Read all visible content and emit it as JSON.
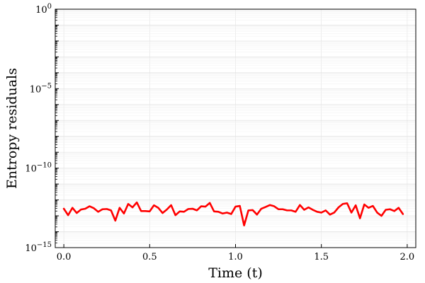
{
  "chart_data": {
    "type": "line",
    "xlabel": "Time (t)",
    "ylabel": "Entropy residuals",
    "xlim": [
      -0.05,
      2.05
    ],
    "ylim": [
      1e-15,
      1
    ],
    "yscale": "log",
    "grid": true,
    "legend": "none",
    "x_ticks": [
      {
        "value": 0.0,
        "label": "0.0"
      },
      {
        "value": 0.5,
        "label": "0.5"
      },
      {
        "value": 1.0,
        "label": "1.0"
      },
      {
        "value": 1.5,
        "label": "1.5"
      },
      {
        "value": 2.0,
        "label": "2.0"
      }
    ],
    "y_ticks": [
      {
        "exp": -15,
        "base": "10",
        "sup": "−15"
      },
      {
        "exp": -10,
        "base": "10",
        "sup": "−10"
      },
      {
        "exp": -5,
        "base": "10",
        "sup": "−5"
      },
      {
        "exp": 0,
        "base": "10",
        "sup": "0"
      }
    ],
    "series": [
      {
        "color": "#ff0000",
        "x": [
          0.0,
          0.025,
          0.05,
          0.075,
          0.1,
          0.125,
          0.15,
          0.175,
          0.2,
          0.225,
          0.25,
          0.275,
          0.3,
          0.325,
          0.35,
          0.375,
          0.4,
          0.425,
          0.45,
          0.475,
          0.5,
          0.525,
          0.55,
          0.575,
          0.6,
          0.625,
          0.65,
          0.675,
          0.7,
          0.725,
          0.75,
          0.775,
          0.8,
          0.825,
          0.85,
          0.875,
          0.9,
          0.925,
          0.95,
          0.975,
          1.0,
          1.025,
          1.05,
          1.075,
          1.1,
          1.125,
          1.15,
          1.175,
          1.2,
          1.225,
          1.25,
          1.275,
          1.3,
          1.325,
          1.35,
          1.375,
          1.4,
          1.425,
          1.45,
          1.475,
          1.5,
          1.525,
          1.55,
          1.575,
          1.6,
          1.625,
          1.65,
          1.675,
          1.7,
          1.725,
          1.75,
          1.775,
          1.8,
          1.825,
          1.85,
          1.875,
          1.9,
          1.925,
          1.95,
          1.975
        ],
        "y": [
          2.8e-13,
          1.1e-13,
          3.2e-13,
          1.5e-13,
          2.5e-13,
          2.8e-13,
          4e-13,
          3e-13,
          1.8e-13,
          2.6e-13,
          2.7e-13,
          2.2e-13,
          5e-14,
          3.2e-13,
          1.4e-13,
          5.6e-13,
          3.4e-13,
          7e-13,
          2e-13,
          2e-13,
          1.9e-13,
          4.6e-13,
          3.2e-13,
          1.5e-13,
          2.5e-13,
          4.7e-13,
          1.1e-13,
          1.9e-13,
          1.8e-13,
          2.7e-13,
          2.8e-13,
          2.2e-13,
          4e-13,
          3.8e-13,
          6.5e-13,
          1.9e-13,
          1.8e-13,
          1.4e-13,
          1.6e-13,
          1.3e-13,
          3.8e-13,
          4.2e-13,
          2.5e-14,
          2.2e-13,
          2.3e-13,
          1.2e-13,
          2.8e-13,
          3.6e-13,
          4.8e-13,
          4e-13,
          2.6e-13,
          2.6e-13,
          2.2e-13,
          2.2e-13,
          1.8e-13,
          4.8e-13,
          2.4e-13,
          3.4e-13,
          2.4e-13,
          1.8e-13,
          1.6e-13,
          2.2e-13,
          1.2e-13,
          1.6e-13,
          3.4e-13,
          5.6e-13,
          6.2e-13,
          1.6e-13,
          4.6e-13,
          7e-14,
          5.2e-13,
          3.2e-13,
          4.2e-13,
          1.6e-13,
          1e-13,
          2.4e-13,
          2.6e-13,
          2e-13,
          3.2e-13,
          1.3e-13
        ]
      }
    ]
  }
}
